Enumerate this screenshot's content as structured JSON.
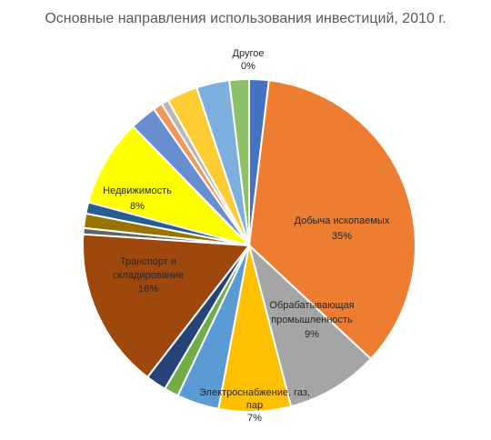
{
  "chart_data": {
    "type": "pie",
    "title": "Основные направления использования инвестиций, 2010 г.",
    "slices": [
      {
        "value": 1.9,
        "color": "#4472C4"
      },
      {
        "label": "Добыча ископаемых",
        "pct_label": "35%",
        "value": 35.0,
        "color": "#ED7D31"
      },
      {
        "label": "Обрабатывающая промышленность",
        "pct_label": "9%",
        "value": 9.0,
        "color": "#A5A5A5"
      },
      {
        "label": "Электроснабжение, газ, пар",
        "pct_label": "7%",
        "value": 7.0,
        "color": "#FFC000"
      },
      {
        "value": 4.1,
        "color": "#5B9BD5"
      },
      {
        "value": 1.4,
        "color": "#70AD47"
      },
      {
        "value": 2.0,
        "color": "#264478"
      },
      {
        "label": "Транспорт и складирование",
        "pct_label": "16%",
        "value": 15.6,
        "color": "#9E480E"
      },
      {
        "value": 0.6,
        "color": "#636363"
      },
      {
        "value": 1.4,
        "color": "#997300"
      },
      {
        "value": 1.1,
        "color": "#255E91"
      },
      {
        "label": "Недвижимость",
        "pct_label": "8%",
        "value": 8.5,
        "color": "#FFFF00"
      },
      {
        "value": 2.6,
        "color": "#698ED0"
      },
      {
        "value": 0.9,
        "color": "#F1975A"
      },
      {
        "value": 0.7,
        "color": "#B7B7B7"
      },
      {
        "value": 3.0,
        "color": "#FFCD33"
      },
      {
        "value": 3.2,
        "color": "#7CAFDD"
      },
      {
        "value": 1.9,
        "color": "#8CC168"
      },
      {
        "label": "Другое",
        "pct_label": "0%",
        "value": 0.0,
        "color": "#43682B"
      }
    ]
  }
}
